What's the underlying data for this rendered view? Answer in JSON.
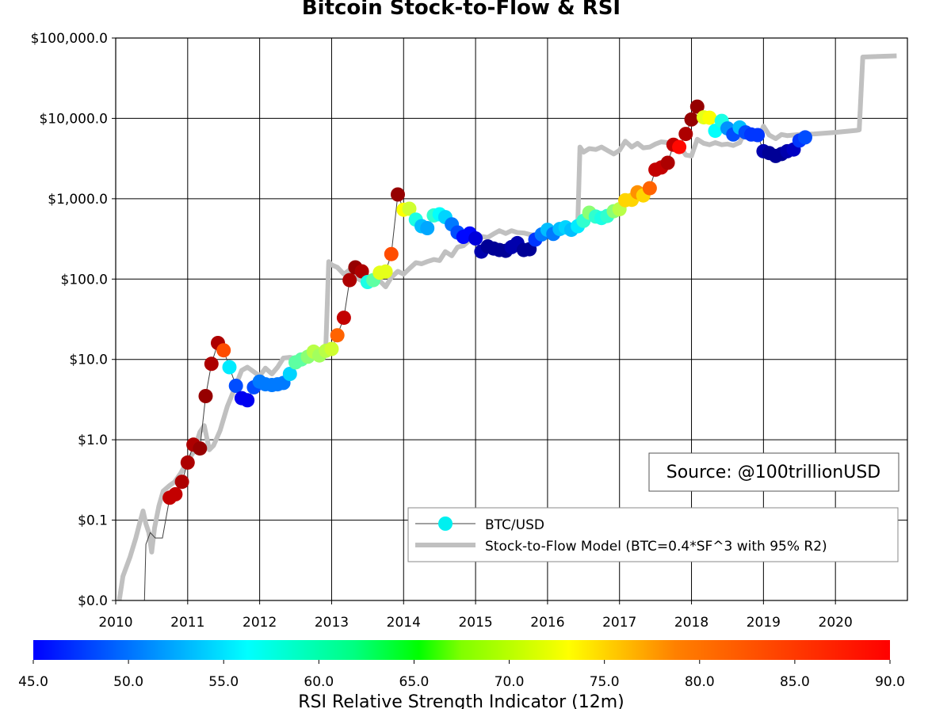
{
  "chart_data": {
    "type": "scatter",
    "title": "Bitcoin Stock-to-Flow & RSI",
    "xlabel": "",
    "ylabel": "",
    "xlim": [
      2010,
      2021
    ],
    "y_scale": "log",
    "ylim": [
      0.01,
      100000
    ],
    "x_ticks": [
      2010,
      2011,
      2012,
      2013,
      2014,
      2015,
      2016,
      2017,
      2018,
      2019,
      2020
    ],
    "y_ticks": [
      {
        "value": 0.01,
        "label": "$0.0"
      },
      {
        "value": 0.1,
        "label": "$0.1"
      },
      {
        "value": 1,
        "label": "$1.0"
      },
      {
        "value": 10,
        "label": "$10.0"
      },
      {
        "value": 100,
        "label": "$100.0"
      },
      {
        "value": 1000,
        "label": "$1,000.0"
      },
      {
        "value": 10000,
        "label": "$10,000.0"
      },
      {
        "value": 100000,
        "label": "$100,000.0"
      }
    ],
    "grid": true,
    "legend_position": "lower-right",
    "series": [
      {
        "name": "BTC/USD",
        "kind": "line+markers",
        "line_color": "#404040",
        "marker_color_by": "rsi",
        "points": [
          [
            2010.4,
            0.01,
            null
          ],
          [
            2010.42,
            0.05,
            null
          ],
          [
            2010.48,
            0.07,
            null
          ],
          [
            2010.55,
            0.06,
            null
          ],
          [
            2010.65,
            0.06,
            null
          ],
          [
            2010.75,
            0.19,
            87
          ],
          [
            2010.83,
            0.21,
            87
          ],
          [
            2010.92,
            0.3,
            88
          ],
          [
            2011.0,
            0.52,
            88
          ],
          [
            2011.08,
            0.87,
            88
          ],
          [
            2011.17,
            0.78,
            89
          ],
          [
            2011.25,
            3.5,
            89
          ],
          [
            2011.33,
            8.8,
            88
          ],
          [
            2011.42,
            16,
            88
          ],
          [
            2011.5,
            13,
            81
          ],
          [
            2011.58,
            8,
            61
          ],
          [
            2011.67,
            4.7,
            54
          ],
          [
            2011.75,
            3.3,
            50
          ],
          [
            2011.83,
            3.1,
            50
          ],
          [
            2011.92,
            4.5,
            54
          ],
          [
            2012.0,
            5.3,
            56
          ],
          [
            2012.08,
            4.9,
            56
          ],
          [
            2012.17,
            4.8,
            56
          ],
          [
            2012.25,
            4.9,
            56
          ],
          [
            2012.33,
            5.1,
            56
          ],
          [
            2012.42,
            6.6,
            60
          ],
          [
            2012.5,
            9.2,
            66
          ],
          [
            2012.58,
            10,
            66
          ],
          [
            2012.67,
            10.8,
            68
          ],
          [
            2012.75,
            12.5,
            70
          ],
          [
            2012.83,
            11.2,
            69
          ],
          [
            2012.92,
            12.8,
            70
          ],
          [
            2013.0,
            13.5,
            71
          ],
          [
            2013.08,
            20,
            80
          ],
          [
            2013.17,
            33,
            87
          ],
          [
            2013.25,
            97,
            88
          ],
          [
            2013.33,
            140,
            89
          ],
          [
            2013.42,
            125,
            88
          ],
          [
            2013.5,
            92,
            63
          ],
          [
            2013.58,
            97,
            66
          ],
          [
            2013.67,
            120,
            72
          ],
          [
            2013.75,
            124,
            72
          ],
          [
            2013.83,
            205,
            81
          ],
          [
            2013.92,
            1130,
            89
          ],
          [
            2014.0,
            730,
            73
          ],
          [
            2014.08,
            750,
            71
          ],
          [
            2014.17,
            550,
            63
          ],
          [
            2014.25,
            455,
            59
          ],
          [
            2014.33,
            430,
            58
          ],
          [
            2014.42,
            620,
            64
          ],
          [
            2014.5,
            640,
            62
          ],
          [
            2014.58,
            590,
            60
          ],
          [
            2014.67,
            480,
            56
          ],
          [
            2014.75,
            380,
            54
          ],
          [
            2014.83,
            335,
            51
          ],
          [
            2014.92,
            370,
            51
          ],
          [
            2015.0,
            320,
            49
          ],
          [
            2015.08,
            220,
            47
          ],
          [
            2015.17,
            255,
            46
          ],
          [
            2015.25,
            240,
            46
          ],
          [
            2015.33,
            230,
            46
          ],
          [
            2015.42,
            225,
            46
          ],
          [
            2015.5,
            250,
            47
          ],
          [
            2015.58,
            280,
            47
          ],
          [
            2015.67,
            230,
            46
          ],
          [
            2015.75,
            235,
            46
          ],
          [
            2015.83,
            310,
            53
          ],
          [
            2015.92,
            360,
            56
          ],
          [
            2016.0,
            410,
            59
          ],
          [
            2016.08,
            365,
            56
          ],
          [
            2016.17,
            420,
            59
          ],
          [
            2016.25,
            440,
            60
          ],
          [
            2016.33,
            410,
            59
          ],
          [
            2016.42,
            455,
            61
          ],
          [
            2016.5,
            530,
            64
          ],
          [
            2016.58,
            670,
            68
          ],
          [
            2016.67,
            600,
            64
          ],
          [
            2016.75,
            575,
            63
          ],
          [
            2016.83,
            610,
            64
          ],
          [
            2016.92,
            700,
            68
          ],
          [
            2017.0,
            740,
            70
          ],
          [
            2017.08,
            960,
            75
          ],
          [
            2017.17,
            970,
            75
          ],
          [
            2017.25,
            1200,
            78
          ],
          [
            2017.33,
            1100,
            75
          ],
          [
            2017.42,
            1350,
            80
          ],
          [
            2017.5,
            2300,
            87
          ],
          [
            2017.58,
            2450,
            87
          ],
          [
            2017.67,
            2800,
            88
          ],
          [
            2017.75,
            4700,
            87
          ],
          [
            2017.83,
            4400,
            84
          ],
          [
            2017.92,
            6400,
            88
          ],
          [
            2018.0,
            9700,
            89
          ],
          [
            2018.08,
            14000,
            89
          ],
          [
            2018.17,
            10300,
            72
          ],
          [
            2018.25,
            10200,
            73
          ],
          [
            2018.33,
            7000,
            62
          ],
          [
            2018.42,
            9300,
            63
          ],
          [
            2018.5,
            7500,
            57
          ],
          [
            2018.58,
            6300,
            54
          ],
          [
            2018.67,
            7700,
            59
          ],
          [
            2018.75,
            6700,
            54
          ],
          [
            2018.83,
            6300,
            53
          ],
          [
            2018.92,
            6200,
            53
          ],
          [
            2019.0,
            3900,
            47
          ],
          [
            2019.08,
            3700,
            46
          ],
          [
            2019.17,
            3400,
            46
          ],
          [
            2019.25,
            3600,
            46
          ],
          [
            2019.33,
            3900,
            47
          ],
          [
            2019.42,
            4100,
            48
          ],
          [
            2019.5,
            5300,
            53
          ],
          [
            2019.58,
            5800,
            54
          ]
        ]
      },
      {
        "name": "Stock-to-Flow Model (BTC=0.4*SF^3 with 95% R2)",
        "kind": "line",
        "color": "#c0c0c0",
        "points": [
          [
            2010.05,
            0.01
          ],
          [
            2010.1,
            0.02
          ],
          [
            2010.2,
            0.035
          ],
          [
            2010.28,
            0.06
          ],
          [
            2010.33,
            0.09
          ],
          [
            2010.38,
            0.13
          ],
          [
            2010.42,
            0.09
          ],
          [
            2010.46,
            0.07
          ],
          [
            2010.5,
            0.04
          ],
          [
            2010.54,
            0.08
          ],
          [
            2010.6,
            0.15
          ],
          [
            2010.66,
            0.23
          ],
          [
            2010.75,
            0.27
          ],
          [
            2010.82,
            0.3
          ],
          [
            2010.9,
            0.38
          ],
          [
            2011.0,
            0.55
          ],
          [
            2011.08,
            0.7
          ],
          [
            2011.17,
            1.25
          ],
          [
            2011.23,
            1.5
          ],
          [
            2011.3,
            0.75
          ],
          [
            2011.36,
            0.85
          ],
          [
            2011.45,
            1.3
          ],
          [
            2011.55,
            2.6
          ],
          [
            2011.65,
            4.3
          ],
          [
            2011.75,
            7.3
          ],
          [
            2011.83,
            8
          ],
          [
            2011.92,
            7
          ],
          [
            2012.0,
            6.2
          ],
          [
            2012.08,
            7.8
          ],
          [
            2012.17,
            6.6
          ],
          [
            2012.25,
            8
          ],
          [
            2012.33,
            10.4
          ],
          [
            2012.42,
            10.6
          ],
          [
            2012.5,
            10.2
          ],
          [
            2012.58,
            10.5
          ],
          [
            2012.67,
            11.4
          ],
          [
            2012.75,
            12
          ],
          [
            2012.83,
            13
          ],
          [
            2012.92,
            15
          ],
          [
            2012.96,
            165
          ],
          [
            2013.0,
            150
          ],
          [
            2013.08,
            140
          ],
          [
            2013.17,
            115
          ],
          [
            2013.25,
            130
          ],
          [
            2013.33,
            105
          ],
          [
            2013.42,
            95
          ],
          [
            2013.5,
            110
          ],
          [
            2013.58,
            100
          ],
          [
            2013.67,
            95
          ],
          [
            2013.75,
            80
          ],
          [
            2013.83,
            105
          ],
          [
            2013.92,
            125
          ],
          [
            2014.0,
            115
          ],
          [
            2014.08,
            135
          ],
          [
            2014.17,
            160
          ],
          [
            2014.25,
            155
          ],
          [
            2014.33,
            165
          ],
          [
            2014.42,
            175
          ],
          [
            2014.5,
            170
          ],
          [
            2014.58,
            220
          ],
          [
            2014.67,
            195
          ],
          [
            2014.75,
            250
          ],
          [
            2014.83,
            260
          ],
          [
            2014.92,
            305
          ],
          [
            2015.0,
            285
          ],
          [
            2015.08,
            340
          ],
          [
            2015.17,
            330
          ],
          [
            2015.25,
            365
          ],
          [
            2015.33,
            400
          ],
          [
            2015.42,
            370
          ],
          [
            2015.5,
            400
          ],
          [
            2015.58,
            380
          ],
          [
            2015.67,
            375
          ],
          [
            2015.75,
            360
          ],
          [
            2015.83,
            350
          ],
          [
            2015.92,
            395
          ],
          [
            2016.0,
            410
          ],
          [
            2016.08,
            400
          ],
          [
            2016.17,
            440
          ],
          [
            2016.25,
            470
          ],
          [
            2016.33,
            440
          ],
          [
            2016.42,
            510
          ],
          [
            2016.45,
            4400
          ],
          [
            2016.5,
            3800
          ],
          [
            2016.58,
            4200
          ],
          [
            2016.67,
            4100
          ],
          [
            2016.75,
            4400
          ],
          [
            2016.83,
            4000
          ],
          [
            2016.92,
            3600
          ],
          [
            2017.0,
            4000
          ],
          [
            2017.08,
            5200
          ],
          [
            2017.17,
            4400
          ],
          [
            2017.25,
            4900
          ],
          [
            2017.33,
            4300
          ],
          [
            2017.42,
            4400
          ],
          [
            2017.5,
            4800
          ],
          [
            2017.58,
            5100
          ],
          [
            2017.67,
            5000
          ],
          [
            2017.75,
            4600
          ],
          [
            2017.83,
            4700
          ],
          [
            2017.92,
            3500
          ],
          [
            2018.0,
            3400
          ],
          [
            2018.08,
            5500
          ],
          [
            2018.17,
            4900
          ],
          [
            2018.25,
            4700
          ],
          [
            2018.33,
            5000
          ],
          [
            2018.42,
            4700
          ],
          [
            2018.5,
            4800
          ],
          [
            2018.58,
            4600
          ],
          [
            2018.67,
            5000
          ],
          [
            2018.75,
            7000
          ],
          [
            2018.83,
            5600
          ],
          [
            2018.92,
            5400
          ],
          [
            2019.0,
            8000
          ],
          [
            2019.08,
            6200
          ],
          [
            2019.17,
            5600
          ],
          [
            2019.25,
            6300
          ],
          [
            2019.33,
            6100
          ],
          [
            2019.5,
            6300
          ],
          [
            2019.7,
            6400
          ],
          [
            2020.0,
            6700
          ],
          [
            2020.3,
            7100
          ],
          [
            2020.33,
            7200
          ],
          [
            2020.38,
            58000
          ],
          [
            2020.6,
            59000
          ],
          [
            2020.85,
            60000
          ]
        ]
      }
    ],
    "colorbar": {
      "label": "RSI Relative Strength Indicator (12m)",
      "min": 45,
      "max": 90,
      "colormap": "jet",
      "ticks": [
        "45.0",
        "50.0",
        "55.0",
        "60.0",
        "65.0",
        "70.0",
        "75.0",
        "80.0",
        "85.0",
        "90.0"
      ]
    }
  },
  "source_box": {
    "text": "Source: @100trillionUSD"
  },
  "legend": {
    "items": [
      {
        "label": "BTC/USD"
      },
      {
        "label": "Stock-to-Flow Model (BTC=0.4*SF^3 with 95% R2)"
      }
    ]
  },
  "colors": {
    "btc_line": "#404040",
    "s2f_line": "#c0c0c0",
    "legend_marker": "#00f0f0",
    "grid": "#000000"
  }
}
